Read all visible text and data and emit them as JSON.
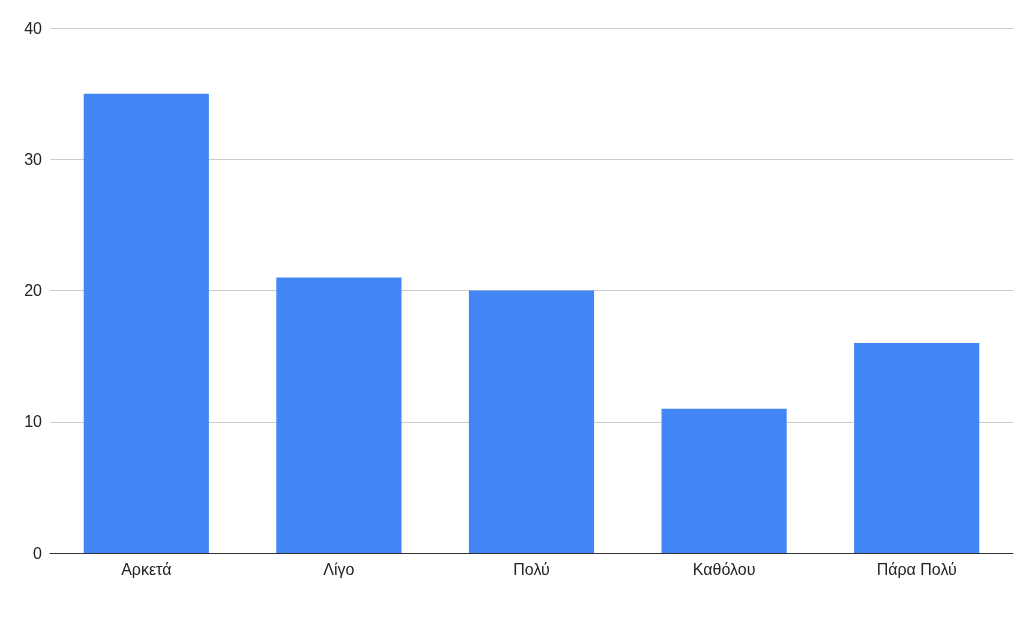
{
  "chart_data": {
    "type": "bar",
    "categories": [
      "Αρκετά",
      "Λίγο",
      "Πολύ",
      "Καθόλου",
      "Πάρα Πολύ"
    ],
    "values": [
      35,
      21,
      20,
      11,
      16
    ],
    "color": "#4285f4",
    "ylim": [
      0,
      40
    ],
    "yticks": [
      0,
      10,
      20,
      30,
      40
    ],
    "grid": "y"
  }
}
